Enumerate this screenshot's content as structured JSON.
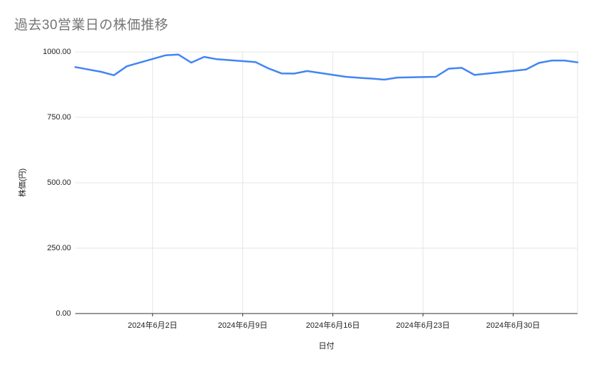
{
  "title": "過去30営業日の株価推移",
  "colors": {
    "series": "#4285f4",
    "grid": "#e6e6e6",
    "axis_line": "#333333",
    "title_text": "#757575",
    "tick_text": "#222222",
    "background": "#ffffff"
  },
  "chart_data": {
    "type": "line",
    "title": "過去30営業日の株価推移",
    "xlabel": "日付",
    "ylabel": "株価(円)",
    "ylim": [
      0,
      1000
    ],
    "grid": true,
    "legend": "none",
    "y_ticks": [
      {
        "label": "1000.00",
        "value": 1000
      },
      {
        "label": "750.00",
        "value": 750
      },
      {
        "label": "500.00",
        "value": 500
      },
      {
        "label": "250.00",
        "value": 250
      },
      {
        "label": "0.00",
        "value": 0
      }
    ],
    "x_ticks": [
      {
        "label": "2024年6月2日",
        "day": 6
      },
      {
        "label": "2024年6月9日",
        "day": 13
      },
      {
        "label": "2024年6月16日",
        "day": 20
      },
      {
        "label": "2024年6月23日",
        "day": 27
      },
      {
        "label": "2024年6月30日",
        "day": 34
      }
    ],
    "x_range_days": 39,
    "series": [
      {
        "name": "株価",
        "color": "#4285f4",
        "points": [
          {
            "date": "2024/5/27",
            "day": 0,
            "value": 942
          },
          {
            "date": "2024/5/28",
            "day": 1,
            "value": 933
          },
          {
            "date": "2024/5/29",
            "day": 2,
            "value": 924
          },
          {
            "date": "2024/5/30",
            "day": 3,
            "value": 911
          },
          {
            "date": "2024/5/31",
            "day": 4,
            "value": 945
          },
          {
            "date": "2024/6/3",
            "day": 7,
            "value": 987
          },
          {
            "date": "2024/6/4",
            "day": 8,
            "value": 990
          },
          {
            "date": "2024/6/5",
            "day": 9,
            "value": 959
          },
          {
            "date": "2024/6/6",
            "day": 10,
            "value": 981
          },
          {
            "date": "2024/6/7",
            "day": 11,
            "value": 972
          },
          {
            "date": "2024/6/10",
            "day": 14,
            "value": 961
          },
          {
            "date": "2024/6/11",
            "day": 15,
            "value": 937
          },
          {
            "date": "2024/6/12",
            "day": 16,
            "value": 918
          },
          {
            "date": "2024/6/13",
            "day": 17,
            "value": 917
          },
          {
            "date": "2024/6/14",
            "day": 18,
            "value": 927
          },
          {
            "date": "2024/6/17",
            "day": 21,
            "value": 905
          },
          {
            "date": "2024/6/18",
            "day": 22,
            "value": 901
          },
          {
            "date": "2024/6/19",
            "day": 23,
            "value": 898
          },
          {
            "date": "2024/6/20",
            "day": 24,
            "value": 894
          },
          {
            "date": "2024/6/21",
            "day": 25,
            "value": 902
          },
          {
            "date": "2024/6/24",
            "day": 28,
            "value": 905
          },
          {
            "date": "2024/6/25",
            "day": 29,
            "value": 936
          },
          {
            "date": "2024/6/26",
            "day": 30,
            "value": 939
          },
          {
            "date": "2024/6/27",
            "day": 31,
            "value": 912
          },
          {
            "date": "2024/6/28",
            "day": 32,
            "value": 917
          },
          {
            "date": "2024/7/1",
            "day": 35,
            "value": 933
          },
          {
            "date": "2024/7/2",
            "day": 36,
            "value": 958
          },
          {
            "date": "2024/7/3",
            "day": 37,
            "value": 967
          },
          {
            "date": "2024/7/4",
            "day": 38,
            "value": 967
          },
          {
            "date": "2024/7/5",
            "day": 39,
            "value": 960
          }
        ]
      }
    ]
  }
}
